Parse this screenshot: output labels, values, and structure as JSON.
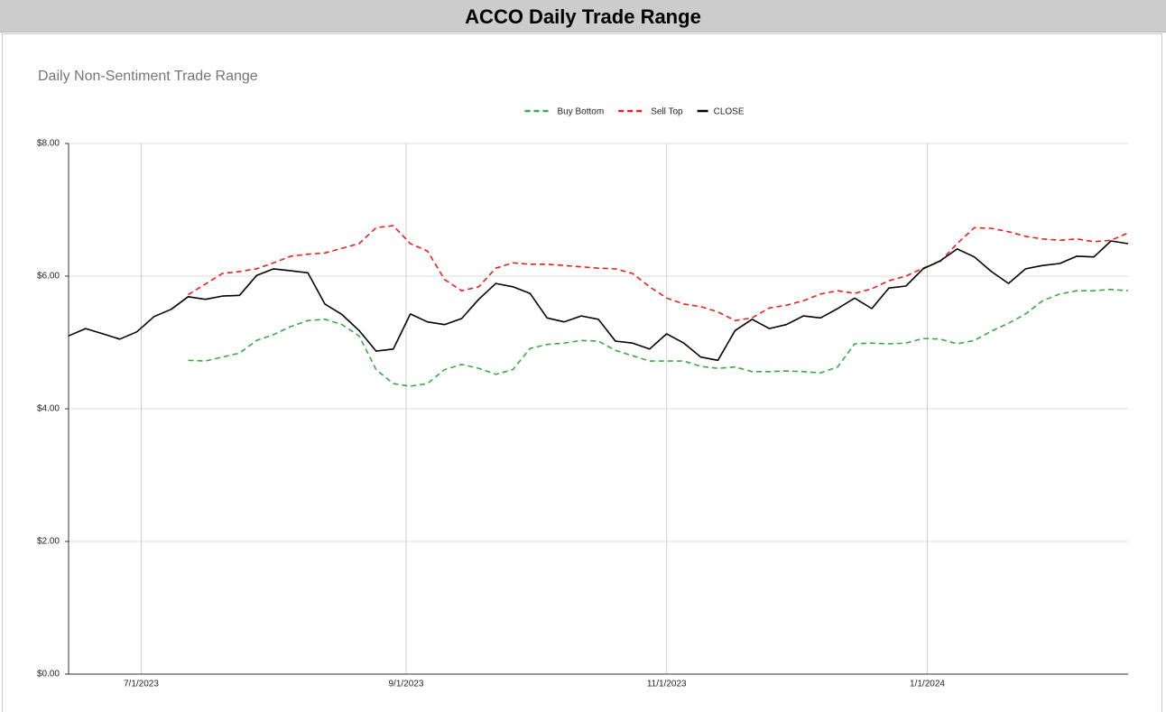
{
  "header": {
    "title": "ACCO Daily Trade Range"
  },
  "chart_data": {
    "type": "line",
    "title": "Daily Non-Sentiment Trade Range",
    "legend": "top",
    "grid": true,
    "x": [
      "2023-06-14",
      "2023-06-18",
      "2023-06-22",
      "2023-06-26",
      "2023-06-30",
      "2023-07-04",
      "2023-07-08",
      "2023-07-12",
      "2023-07-16",
      "2023-07-20",
      "2023-07-24",
      "2023-07-28",
      "2023-08-01",
      "2023-08-05",
      "2023-08-09",
      "2023-08-13",
      "2023-08-17",
      "2023-08-21",
      "2023-08-25",
      "2023-08-29",
      "2023-09-02",
      "2023-09-06",
      "2023-09-10",
      "2023-09-14",
      "2023-09-18",
      "2023-09-22",
      "2023-09-26",
      "2023-09-30",
      "2023-10-04",
      "2023-10-08",
      "2023-10-12",
      "2023-10-16",
      "2023-10-20",
      "2023-10-24",
      "2023-10-28",
      "2023-11-01",
      "2023-11-05",
      "2023-11-09",
      "2023-11-13",
      "2023-11-17",
      "2023-11-21",
      "2023-11-25",
      "2023-11-29",
      "2023-12-03",
      "2023-12-07",
      "2023-12-11",
      "2023-12-15",
      "2023-12-19",
      "2023-12-23",
      "2023-12-27",
      "2023-12-31",
      "2024-01-04",
      "2024-01-08",
      "2024-01-12",
      "2024-01-16",
      "2024-01-20",
      "2024-01-24",
      "2024-01-28",
      "2024-02-01",
      "2024-02-05",
      "2024-02-09",
      "2024-02-13",
      "2024-02-17"
    ],
    "xlim": [
      "2023-06-14",
      "2024-02-17"
    ],
    "xticks": [
      {
        "value": "2023-07-01",
        "label": "7/1/2023"
      },
      {
        "value": "2023-09-01",
        "label": "9/1/2023"
      },
      {
        "value": "2023-11-01",
        "label": "11/1/2023"
      },
      {
        "value": "2024-01-01",
        "label": "1/1/2024"
      }
    ],
    "ylim": [
      0,
      8
    ],
    "yticks": [
      {
        "value": 0,
        "label": "$0.00"
      },
      {
        "value": 2,
        "label": "$2.00"
      },
      {
        "value": 4,
        "label": "$4.00"
      },
      {
        "value": 6,
        "label": "$6.00"
      },
      {
        "value": 8,
        "label": "$8.00"
      }
    ],
    "series": [
      {
        "name": "Buy Bottom",
        "color": "#3aaa48",
        "dashed": true,
        "values": [
          null,
          null,
          null,
          null,
          null,
          null,
          null,
          4.73,
          4.72,
          4.78,
          4.84,
          5.03,
          5.12,
          5.24,
          5.33,
          5.35,
          5.27,
          5.1,
          4.59,
          4.38,
          4.34,
          4.38,
          4.59,
          4.67,
          4.61,
          4.52,
          4.59,
          4.91,
          4.97,
          4.99,
          5.03,
          5.02,
          4.88,
          4.8,
          4.72,
          4.72,
          4.72,
          4.64,
          4.61,
          4.63,
          4.56,
          4.56,
          4.57,
          4.56,
          4.54,
          4.63,
          4.98,
          4.99,
          4.98,
          4.99,
          5.06,
          5.05,
          4.98,
          5.03,
          5.17,
          5.29,
          5.43,
          5.63,
          5.73,
          5.78,
          5.78,
          5.8,
          5.78
        ]
      },
      {
        "name": "Sell Top",
        "color": "#e8211d",
        "dashed": true,
        "values": [
          null,
          null,
          null,
          null,
          null,
          null,
          null,
          5.72,
          5.88,
          6.04,
          6.07,
          6.11,
          6.2,
          6.3,
          6.33,
          6.35,
          6.42,
          6.49,
          6.73,
          6.76,
          6.49,
          6.38,
          5.95,
          5.78,
          5.84,
          6.12,
          6.2,
          6.18,
          6.18,
          6.16,
          6.14,
          6.12,
          6.11,
          6.04,
          5.84,
          5.67,
          5.58,
          5.54,
          5.46,
          5.33,
          5.37,
          5.52,
          5.56,
          5.63,
          5.73,
          5.78,
          5.74,
          5.81,
          5.93,
          6.0,
          6.12,
          6.22,
          6.49,
          6.73,
          6.72,
          6.67,
          6.6,
          6.56,
          6.54,
          6.56,
          6.52,
          6.54,
          6.65
        ]
      },
      {
        "name": "CLOSE",
        "color": "#000000",
        "dashed": false,
        "values": [
          5.1,
          5.21,
          5.13,
          5.05,
          5.16,
          5.39,
          5.5,
          5.69,
          5.65,
          5.7,
          5.71,
          6.01,
          6.11,
          6.08,
          6.05,
          5.58,
          5.42,
          5.18,
          4.87,
          4.9,
          5.43,
          5.31,
          5.27,
          5.36,
          5.65,
          5.89,
          5.84,
          5.74,
          5.37,
          5.31,
          5.4,
          5.35,
          5.02,
          4.99,
          4.9,
          5.13,
          4.99,
          4.78,
          4.73,
          5.18,
          5.35,
          5.21,
          5.27,
          5.4,
          5.37,
          5.51,
          5.67,
          5.51,
          5.82,
          5.85,
          6.11,
          6.23,
          6.41,
          6.29,
          6.07,
          5.89,
          6.11,
          6.16,
          6.19,
          6.3,
          6.29,
          6.53,
          6.49
        ]
      }
    ]
  }
}
